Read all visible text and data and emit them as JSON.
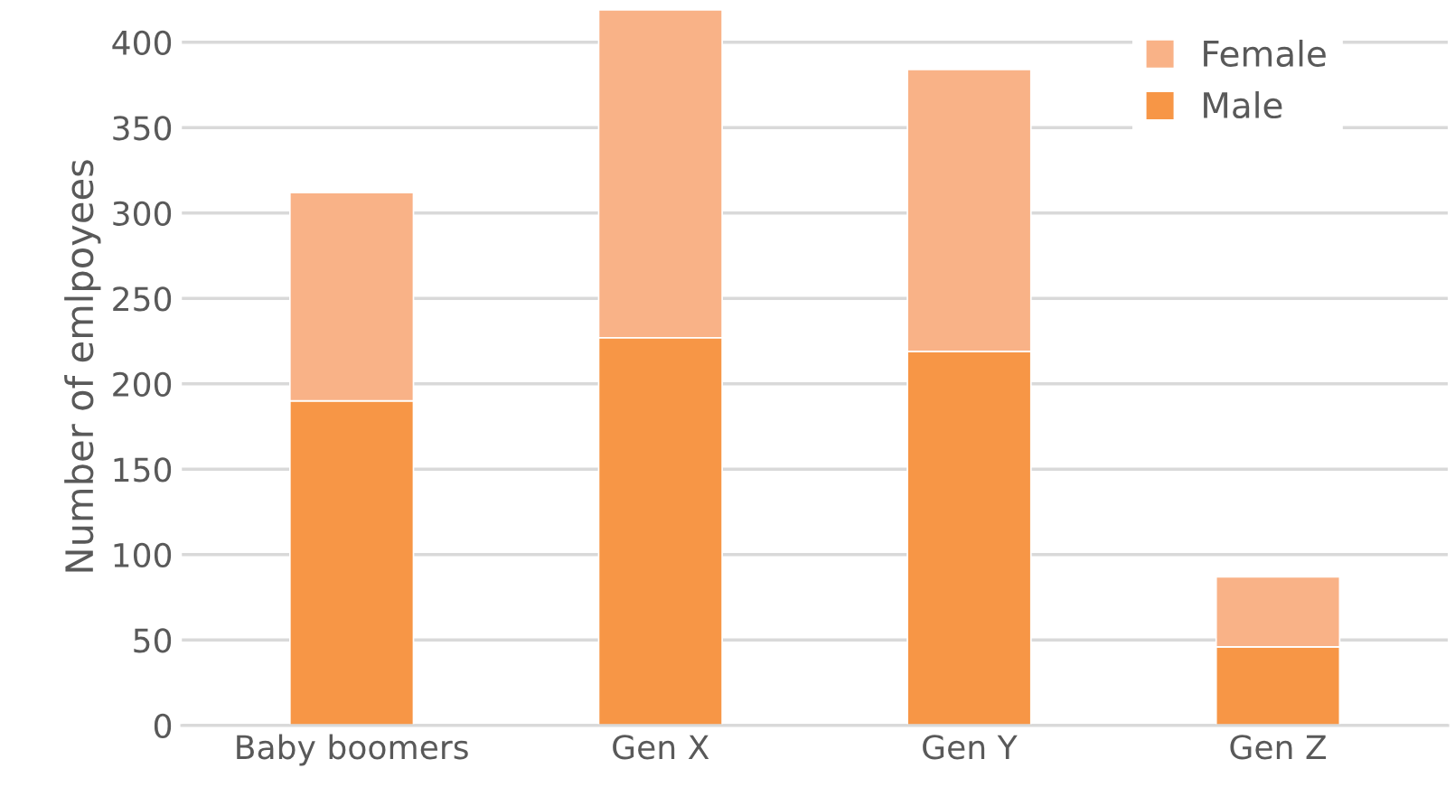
{
  "chart_data": {
    "type": "bar",
    "ylabel": "Number of emlpoyees",
    "categories": [
      "Baby boomers",
      "Gen X",
      "Gen Y",
      "Gen Z"
    ],
    "series": [
      {
        "name": "Male",
        "color": "#f79646",
        "values": [
          190,
          227,
          219,
          46
        ]
      },
      {
        "name": "Female",
        "color": "#f9b287",
        "values": [
          122,
          192,
          165,
          41
        ]
      }
    ],
    "stacked": true,
    "ylim": [
      0,
      420
    ],
    "yticks": [
      0,
      50,
      100,
      150,
      200,
      250,
      300,
      350,
      400
    ],
    "grid": "y",
    "legend": "top right"
  }
}
